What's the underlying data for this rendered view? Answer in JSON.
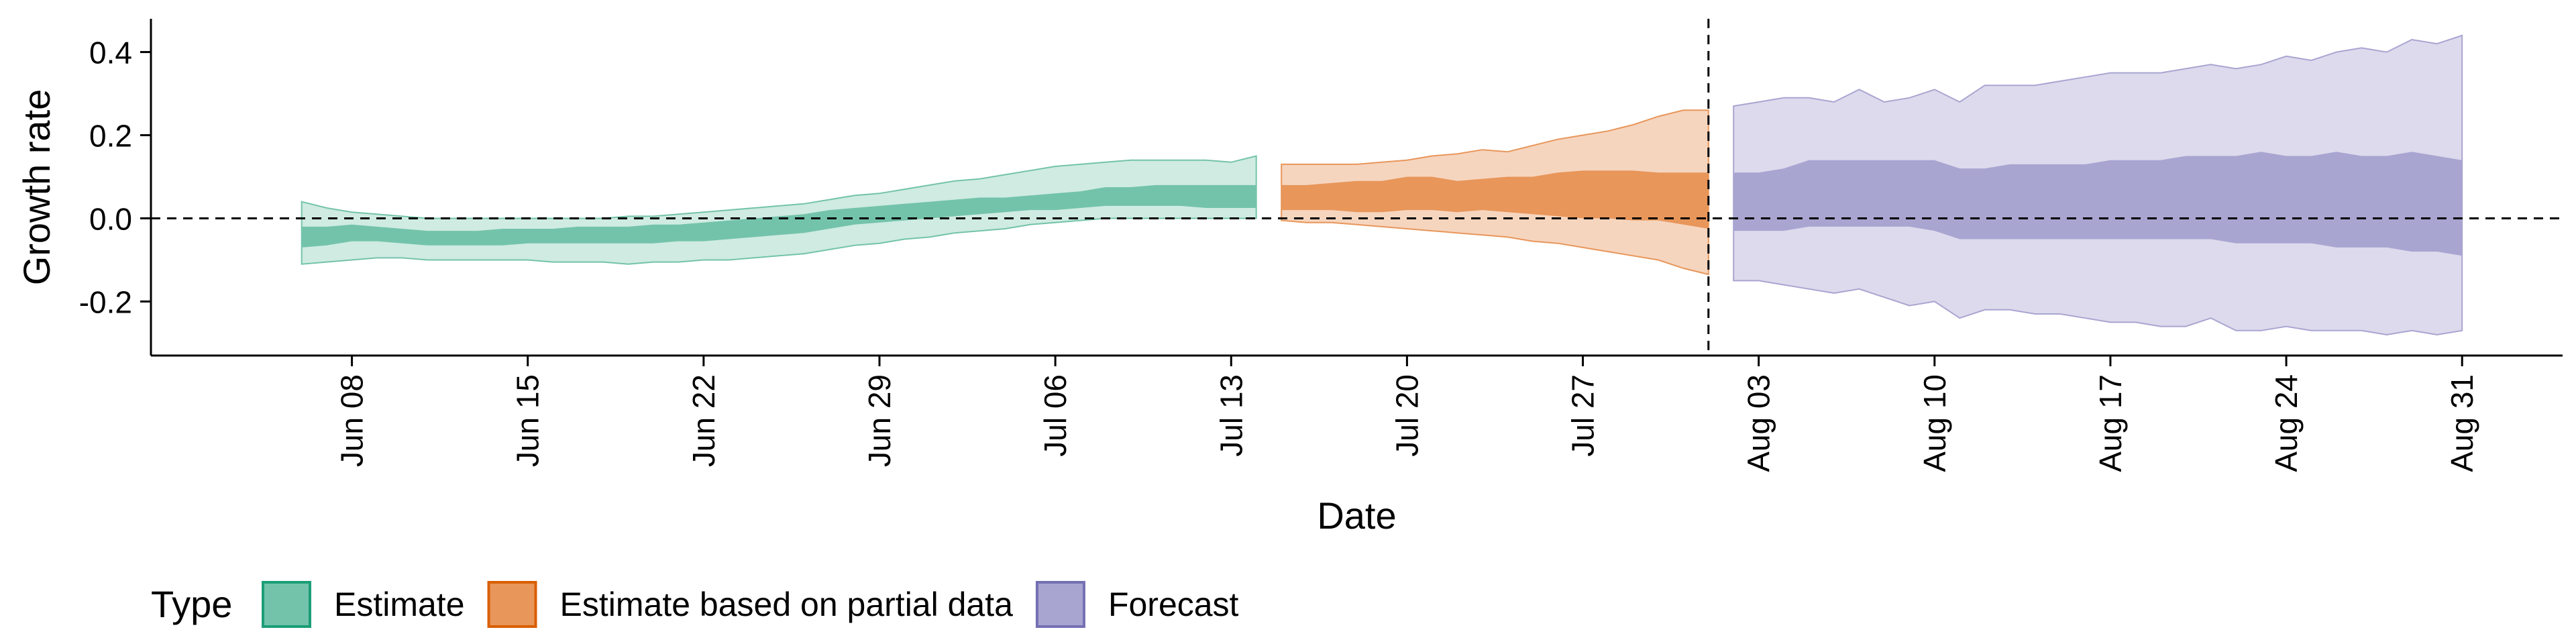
{
  "chart_data": {
    "type": "area",
    "xlabel": "Date",
    "ylabel": "Growth rate",
    "ylim": [
      -0.33,
      0.48
    ],
    "yticks": [
      -0.2,
      0.0,
      0.2,
      0.4
    ],
    "ytick_labels": [
      "-0.2",
      "0.0",
      "0.2",
      "0.4"
    ],
    "xlim": [
      "2021-05-31",
      "2021-09-04"
    ],
    "xticks": [
      "2021-06-08",
      "2021-06-15",
      "2021-06-22",
      "2021-06-29",
      "2021-07-06",
      "2021-07-13",
      "2021-07-20",
      "2021-07-27",
      "2021-08-03",
      "2021-08-10",
      "2021-08-17",
      "2021-08-24",
      "2021-08-31"
    ],
    "xtick_labels": [
      "Jun 08",
      "Jun 15",
      "Jun 22",
      "Jun 29",
      "Jul 06",
      "Jul 13",
      "Jul 20",
      "Jul 27",
      "Aug 03",
      "Aug 10",
      "Aug 17",
      "Aug 24",
      "Aug 31"
    ],
    "hline": 0.0,
    "vline": "2021-08-01",
    "grid": false,
    "legend": {
      "title": "Type",
      "position": "bottom-left"
    },
    "series": [
      {
        "name": "Estimate",
        "color": "#1B9E77",
        "fill": "#73C3AA",
        "light_fill": "#CFEBE2",
        "x": [
          "2021-06-06",
          "2021-06-07",
          "2021-06-08",
          "2021-06-09",
          "2021-06-10",
          "2021-06-11",
          "2021-06-12",
          "2021-06-13",
          "2021-06-14",
          "2021-06-15",
          "2021-06-16",
          "2021-06-17",
          "2021-06-18",
          "2021-06-19",
          "2021-06-20",
          "2021-06-21",
          "2021-06-22",
          "2021-06-23",
          "2021-06-24",
          "2021-06-25",
          "2021-06-26",
          "2021-06-27",
          "2021-06-28",
          "2021-06-29",
          "2021-06-30",
          "2021-07-01",
          "2021-07-02",
          "2021-07-03",
          "2021-07-04",
          "2021-07-05",
          "2021-07-06",
          "2021-07-07",
          "2021-07-08",
          "2021-07-09",
          "2021-07-10",
          "2021-07-11",
          "2021-07-12",
          "2021-07-13",
          "2021-07-14"
        ],
        "lower90": [
          -0.11,
          -0.105,
          -0.1,
          -0.095,
          -0.095,
          -0.1,
          -0.1,
          -0.1,
          -0.1,
          -0.1,
          -0.105,
          -0.105,
          -0.105,
          -0.11,
          -0.105,
          -0.105,
          -0.1,
          -0.1,
          -0.095,
          -0.09,
          -0.085,
          -0.075,
          -0.065,
          -0.06,
          -0.05,
          -0.045,
          -0.035,
          -0.03,
          -0.025,
          -0.015,
          -0.01,
          -0.005,
          0.0,
          0.0,
          0.0,
          0.0,
          0.0,
          0.0,
          0.0
        ],
        "lower50": [
          -0.07,
          -0.065,
          -0.055,
          -0.055,
          -0.06,
          -0.065,
          -0.065,
          -0.065,
          -0.065,
          -0.06,
          -0.06,
          -0.06,
          -0.06,
          -0.06,
          -0.06,
          -0.055,
          -0.055,
          -0.05,
          -0.045,
          -0.04,
          -0.035,
          -0.025,
          -0.015,
          -0.01,
          -0.005,
          0.0,
          0.005,
          0.01,
          0.015,
          0.02,
          0.02,
          0.025,
          0.03,
          0.03,
          0.03,
          0.03,
          0.025,
          0.025,
          0.025
        ],
        "upper50": [
          -0.02,
          -0.02,
          -0.015,
          -0.02,
          -0.025,
          -0.03,
          -0.03,
          -0.03,
          -0.025,
          -0.025,
          -0.025,
          -0.02,
          -0.02,
          -0.02,
          -0.015,
          -0.015,
          -0.01,
          -0.005,
          0.0,
          0.005,
          0.01,
          0.02,
          0.025,
          0.03,
          0.035,
          0.04,
          0.045,
          0.05,
          0.05,
          0.055,
          0.06,
          0.065,
          0.075,
          0.075,
          0.08,
          0.08,
          0.08,
          0.08,
          0.08
        ],
        "upper90": [
          0.04,
          0.025,
          0.015,
          0.01,
          0.005,
          0.0,
          0.0,
          0.0,
          0.0,
          0.0,
          0.0,
          0.0,
          0.0,
          0.005,
          0.005,
          0.01,
          0.015,
          0.02,
          0.025,
          0.03,
          0.035,
          0.045,
          0.055,
          0.06,
          0.07,
          0.08,
          0.09,
          0.095,
          0.105,
          0.115,
          0.125,
          0.13,
          0.135,
          0.14,
          0.14,
          0.14,
          0.14,
          0.135,
          0.15
        ]
      },
      {
        "name": "Estimate based on partial data",
        "color": "#D95F02",
        "fill": "#E8965A",
        "light_fill": "#F6D5BF",
        "x": [
          "2021-07-15",
          "2021-07-16",
          "2021-07-17",
          "2021-07-18",
          "2021-07-19",
          "2021-07-20",
          "2021-07-21",
          "2021-07-22",
          "2021-07-23",
          "2021-07-24",
          "2021-07-25",
          "2021-07-26",
          "2021-07-27",
          "2021-07-28",
          "2021-07-29",
          "2021-07-30",
          "2021-07-31",
          "2021-08-01"
        ],
        "lower90": [
          -0.005,
          -0.01,
          -0.01,
          -0.015,
          -0.02,
          -0.025,
          -0.03,
          -0.035,
          -0.04,
          -0.045,
          -0.055,
          -0.06,
          -0.07,
          -0.08,
          -0.09,
          -0.1,
          -0.12,
          -0.135
        ],
        "lower50": [
          0.02,
          0.02,
          0.02,
          0.015,
          0.015,
          0.02,
          0.02,
          0.015,
          0.02,
          0.015,
          0.01,
          0.005,
          0.0,
          0.0,
          -0.005,
          -0.005,
          -0.015,
          -0.025
        ],
        "upper50": [
          0.08,
          0.08,
          0.085,
          0.09,
          0.09,
          0.1,
          0.1,
          0.09,
          0.095,
          0.1,
          0.1,
          0.11,
          0.115,
          0.115,
          0.115,
          0.11,
          0.11,
          0.11
        ],
        "upper90": [
          0.13,
          0.13,
          0.13,
          0.13,
          0.135,
          0.14,
          0.15,
          0.155,
          0.165,
          0.16,
          0.175,
          0.19,
          0.2,
          0.21,
          0.225,
          0.245,
          0.26,
          0.26
        ]
      },
      {
        "name": "Forecast",
        "color": "#7570B3",
        "fill": "#A9A5D1",
        "light_fill": "#DCDAEC",
        "x": [
          "2021-08-02",
          "2021-08-03",
          "2021-08-04",
          "2021-08-05",
          "2021-08-06",
          "2021-08-07",
          "2021-08-08",
          "2021-08-09",
          "2021-08-10",
          "2021-08-11",
          "2021-08-12",
          "2021-08-13",
          "2021-08-14",
          "2021-08-15",
          "2021-08-16",
          "2021-08-17",
          "2021-08-18",
          "2021-08-19",
          "2021-08-20",
          "2021-08-21",
          "2021-08-22",
          "2021-08-23",
          "2021-08-24",
          "2021-08-25",
          "2021-08-26",
          "2021-08-27",
          "2021-08-28",
          "2021-08-29",
          "2021-08-30",
          "2021-08-31"
        ],
        "lower90": [
          -0.15,
          -0.15,
          -0.16,
          -0.17,
          -0.18,
          -0.17,
          -0.19,
          -0.21,
          -0.2,
          -0.24,
          -0.22,
          -0.22,
          -0.23,
          -0.23,
          -0.24,
          -0.25,
          -0.25,
          -0.26,
          -0.26,
          -0.24,
          -0.27,
          -0.27,
          -0.26,
          -0.27,
          -0.27,
          -0.27,
          -0.28,
          -0.27,
          -0.28,
          -0.27
        ],
        "lower50": [
          -0.03,
          -0.03,
          -0.03,
          -0.02,
          -0.02,
          -0.02,
          -0.02,
          -0.02,
          -0.03,
          -0.05,
          -0.05,
          -0.05,
          -0.05,
          -0.05,
          -0.05,
          -0.05,
          -0.05,
          -0.05,
          -0.05,
          -0.05,
          -0.06,
          -0.06,
          -0.06,
          -0.06,
          -0.07,
          -0.07,
          -0.07,
          -0.08,
          -0.08,
          -0.09
        ],
        "upper50": [
          0.11,
          0.11,
          0.12,
          0.14,
          0.14,
          0.14,
          0.14,
          0.14,
          0.14,
          0.12,
          0.12,
          0.13,
          0.13,
          0.13,
          0.13,
          0.14,
          0.14,
          0.14,
          0.15,
          0.15,
          0.15,
          0.16,
          0.15,
          0.15,
          0.16,
          0.15,
          0.15,
          0.16,
          0.15,
          0.14
        ],
        "upper90": [
          0.27,
          0.28,
          0.29,
          0.29,
          0.28,
          0.31,
          0.28,
          0.29,
          0.31,
          0.28,
          0.32,
          0.32,
          0.32,
          0.33,
          0.34,
          0.35,
          0.35,
          0.35,
          0.36,
          0.37,
          0.36,
          0.37,
          0.39,
          0.38,
          0.4,
          0.41,
          0.4,
          0.43,
          0.42,
          0.44
        ]
      }
    ]
  }
}
